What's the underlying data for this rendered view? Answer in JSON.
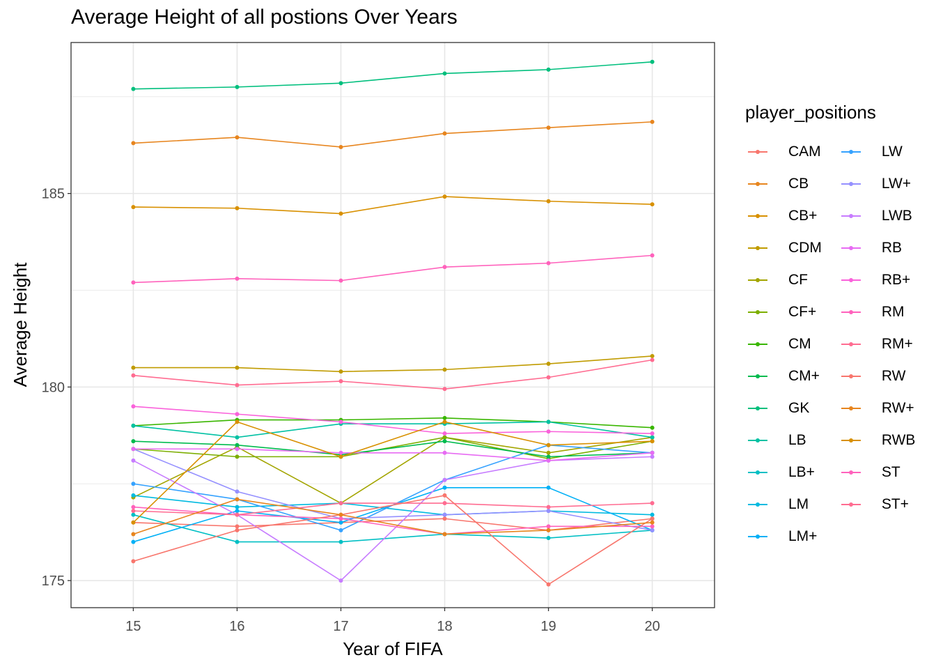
{
  "chart_data": {
    "type": "line",
    "title": "Average Height of all postions Over Years",
    "xlabel": "Year of FIFA",
    "ylabel": "Average Height",
    "x": [
      15,
      16,
      17,
      18,
      19,
      20
    ],
    "xlim": [
      14.4,
      20.6
    ],
    "ylim": [
      174.3,
      188.9
    ],
    "yticks": [
      175,
      180,
      185
    ],
    "grid": true,
    "legend_title": "player_positions",
    "legend_position": "right",
    "series": [
      {
        "name": "CAM",
        "color": "#F8766D",
        "values": [
          176.5,
          176.4,
          176.5,
          176.6,
          176.3,
          176.6
        ]
      },
      {
        "name": "CB",
        "color": "#E7851E",
        "values": [
          186.3,
          186.45,
          186.2,
          186.55,
          186.7,
          186.85
        ]
      },
      {
        "name": "CB+",
        "color": "#D89000",
        "values": [
          184.65,
          184.62,
          184.48,
          184.92,
          184.8,
          184.72
        ]
      },
      {
        "name": "CDM",
        "color": "#C09B00",
        "values": [
          180.5,
          180.5,
          180.4,
          180.45,
          180.6,
          180.8
        ]
      },
      {
        "name": "CF",
        "color": "#A3A500",
        "values": [
          177.15,
          178.45,
          177.0,
          178.7,
          178.3,
          178.7
        ]
      },
      {
        "name": "CF+",
        "color": "#7CAE00",
        "values": [
          178.4,
          178.2,
          178.2,
          178.7,
          178.15,
          178.6
        ]
      },
      {
        "name": "CM",
        "color": "#39B600",
        "values": [
          179.0,
          179.15,
          179.15,
          179.2,
          179.1,
          178.95
        ]
      },
      {
        "name": "CM+",
        "color": "#00BB4E",
        "values": [
          178.6,
          178.5,
          178.25,
          178.6,
          178.2,
          178.3
        ]
      },
      {
        "name": "GK",
        "color": "#00BF7D",
        "values": [
          187.7,
          187.75,
          187.85,
          188.1,
          188.2,
          188.4
        ]
      },
      {
        "name": "LB",
        "color": "#00C1A3",
        "values": [
          179.0,
          178.7,
          179.05,
          179.05,
          179.1,
          178.7
        ]
      },
      {
        "name": "LB+",
        "color": "#00BFC4",
        "values": [
          176.7,
          176.0,
          176.0,
          176.2,
          176.1,
          176.3
        ]
      },
      {
        "name": "LM",
        "color": "#00BAE0",
        "values": [
          177.2,
          176.9,
          177.0,
          176.7,
          176.8,
          176.7
        ]
      },
      {
        "name": "LM+",
        "color": "#00B0F6",
        "values": [
          176.0,
          176.8,
          176.5,
          177.4,
          177.4,
          176.3
        ]
      },
      {
        "name": "LW",
        "color": "#35A2FF",
        "values": [
          177.5,
          177.1,
          176.3,
          177.6,
          178.5,
          178.3
        ]
      },
      {
        "name": "LW+",
        "color": "#9590FF",
        "values": [
          178.4,
          177.3,
          176.6,
          176.7,
          176.8,
          176.3
        ]
      },
      {
        "name": "LWB",
        "color": "#C77CFF",
        "values": [
          178.1,
          176.7,
          175.0,
          177.6,
          178.1,
          178.2
        ]
      },
      {
        "name": "RB",
        "color": "#E76BF3",
        "values": [
          178.4,
          178.4,
          178.3,
          178.3,
          178.1,
          178.3
        ]
      },
      {
        "name": "RB+",
        "color": "#FA62DB",
        "values": [
          179.5,
          179.3,
          179.1,
          178.8,
          178.85,
          178.8
        ]
      },
      {
        "name": "RM",
        "color": "#FF62BC",
        "values": [
          176.9,
          176.7,
          176.6,
          176.2,
          176.4,
          176.4
        ]
      },
      {
        "name": "RM+",
        "color": "#FF6C91",
        "values": [
          176.8,
          176.7,
          177.0,
          177.0,
          176.9,
          177.0
        ]
      },
      {
        "name": "RW",
        "color": "#F8766D",
        "values": [
          175.5,
          176.3,
          176.7,
          177.2,
          174.9,
          176.6
        ]
      },
      {
        "name": "RW+",
        "color": "#E7851E",
        "values": [
          176.2,
          177.1,
          176.7,
          176.2,
          176.3,
          176.5
        ]
      },
      {
        "name": "RWB",
        "color": "#D89000",
        "values": [
          176.5,
          179.1,
          178.2,
          179.1,
          178.5,
          178.6
        ]
      },
      {
        "name": "ST",
        "color": "#FF62BC",
        "values": [
          182.7,
          182.8,
          182.75,
          183.1,
          183.2,
          183.4
        ]
      },
      {
        "name": "ST+",
        "color": "#FF6C91",
        "values": [
          180.3,
          180.05,
          180.15,
          179.95,
          180.25,
          180.7
        ]
      }
    ]
  }
}
